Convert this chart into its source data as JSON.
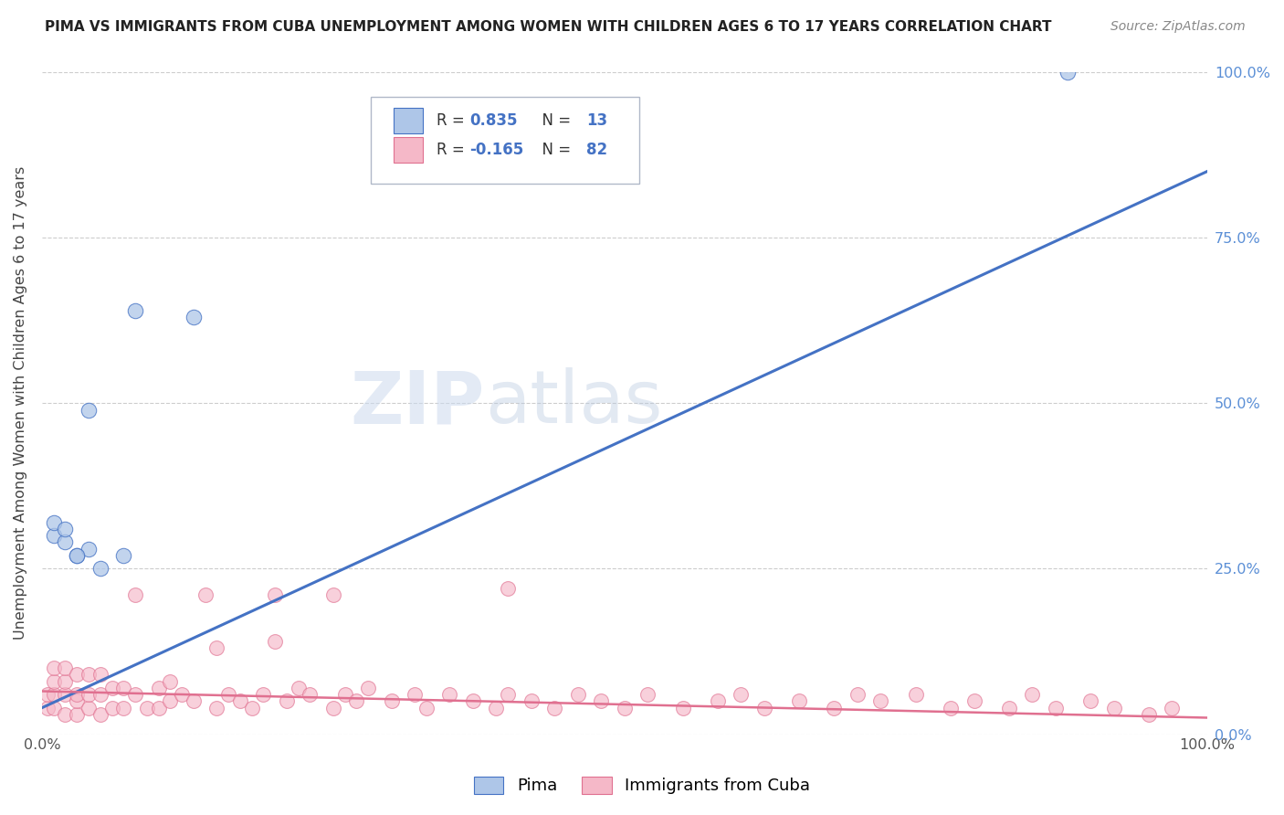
{
  "title": "PIMA VS IMMIGRANTS FROM CUBA UNEMPLOYMENT AMONG WOMEN WITH CHILDREN AGES 6 TO 17 YEARS CORRELATION CHART",
  "source": "Source: ZipAtlas.com",
  "ylabel": "Unemployment Among Women with Children Ages 6 to 17 years",
  "pima_label": "Pima",
  "cuba_label": "Immigrants from Cuba",
  "pima_R": 0.835,
  "pima_N": 13,
  "cuba_R": -0.165,
  "cuba_N": 82,
  "pima_color": "#aec6e8",
  "cuba_color": "#f5b8c8",
  "pima_line_color": "#4472c4",
  "cuba_line_color": "#e07090",
  "background_color": "#ffffff",
  "watermark_zip": "ZIP",
  "watermark_atlas": "atlas",
  "xlim": [
    0,
    1.0
  ],
  "ylim": [
    0,
    1.0
  ],
  "pima_scatter_x": [
    0.01,
    0.02,
    0.03,
    0.04,
    0.05,
    0.07,
    0.08,
    0.13,
    0.88,
    0.01,
    0.02,
    0.03,
    0.04
  ],
  "pima_scatter_y": [
    0.3,
    0.29,
    0.27,
    0.28,
    0.25,
    0.27,
    0.64,
    0.63,
    1.0,
    0.32,
    0.31,
    0.27,
    0.49
  ],
  "pima_line_x0": 0.0,
  "pima_line_y0": 0.04,
  "pima_line_x1": 1.0,
  "pima_line_y1": 0.85,
  "cuba_line_x0": 0.0,
  "cuba_line_y0": 0.065,
  "cuba_line_x1": 1.0,
  "cuba_line_y1": 0.025,
  "cuba_scatter_x": [
    0.005,
    0.005,
    0.01,
    0.01,
    0.01,
    0.01,
    0.02,
    0.02,
    0.02,
    0.02,
    0.03,
    0.03,
    0.03,
    0.03,
    0.04,
    0.04,
    0.04,
    0.05,
    0.05,
    0.05,
    0.06,
    0.06,
    0.07,
    0.07,
    0.08,
    0.08,
    0.09,
    0.1,
    0.1,
    0.11,
    0.11,
    0.12,
    0.13,
    0.14,
    0.15,
    0.16,
    0.17,
    0.18,
    0.19,
    0.2,
    0.21,
    0.22,
    0.23,
    0.25,
    0.26,
    0.27,
    0.28,
    0.3,
    0.32,
    0.33,
    0.35,
    0.37,
    0.39,
    0.4,
    0.42,
    0.44,
    0.46,
    0.48,
    0.5,
    0.52,
    0.55,
    0.58,
    0.6,
    0.62,
    0.65,
    0.68,
    0.7,
    0.72,
    0.75,
    0.78,
    0.8,
    0.83,
    0.85,
    0.87,
    0.9,
    0.92,
    0.95,
    0.97,
    0.15,
    0.2,
    0.25,
    0.4
  ],
  "cuba_scatter_y": [
    0.04,
    0.06,
    0.04,
    0.06,
    0.08,
    0.1,
    0.03,
    0.06,
    0.08,
    0.1,
    0.03,
    0.05,
    0.06,
    0.09,
    0.04,
    0.06,
    0.09,
    0.03,
    0.06,
    0.09,
    0.04,
    0.07,
    0.04,
    0.07,
    0.21,
    0.06,
    0.04,
    0.04,
    0.07,
    0.05,
    0.08,
    0.06,
    0.05,
    0.21,
    0.04,
    0.06,
    0.05,
    0.04,
    0.06,
    0.21,
    0.05,
    0.07,
    0.06,
    0.04,
    0.06,
    0.05,
    0.07,
    0.05,
    0.06,
    0.04,
    0.06,
    0.05,
    0.04,
    0.06,
    0.05,
    0.04,
    0.06,
    0.05,
    0.04,
    0.06,
    0.04,
    0.05,
    0.06,
    0.04,
    0.05,
    0.04,
    0.06,
    0.05,
    0.06,
    0.04,
    0.05,
    0.04,
    0.06,
    0.04,
    0.05,
    0.04,
    0.03,
    0.04,
    0.13,
    0.14,
    0.21,
    0.22
  ]
}
